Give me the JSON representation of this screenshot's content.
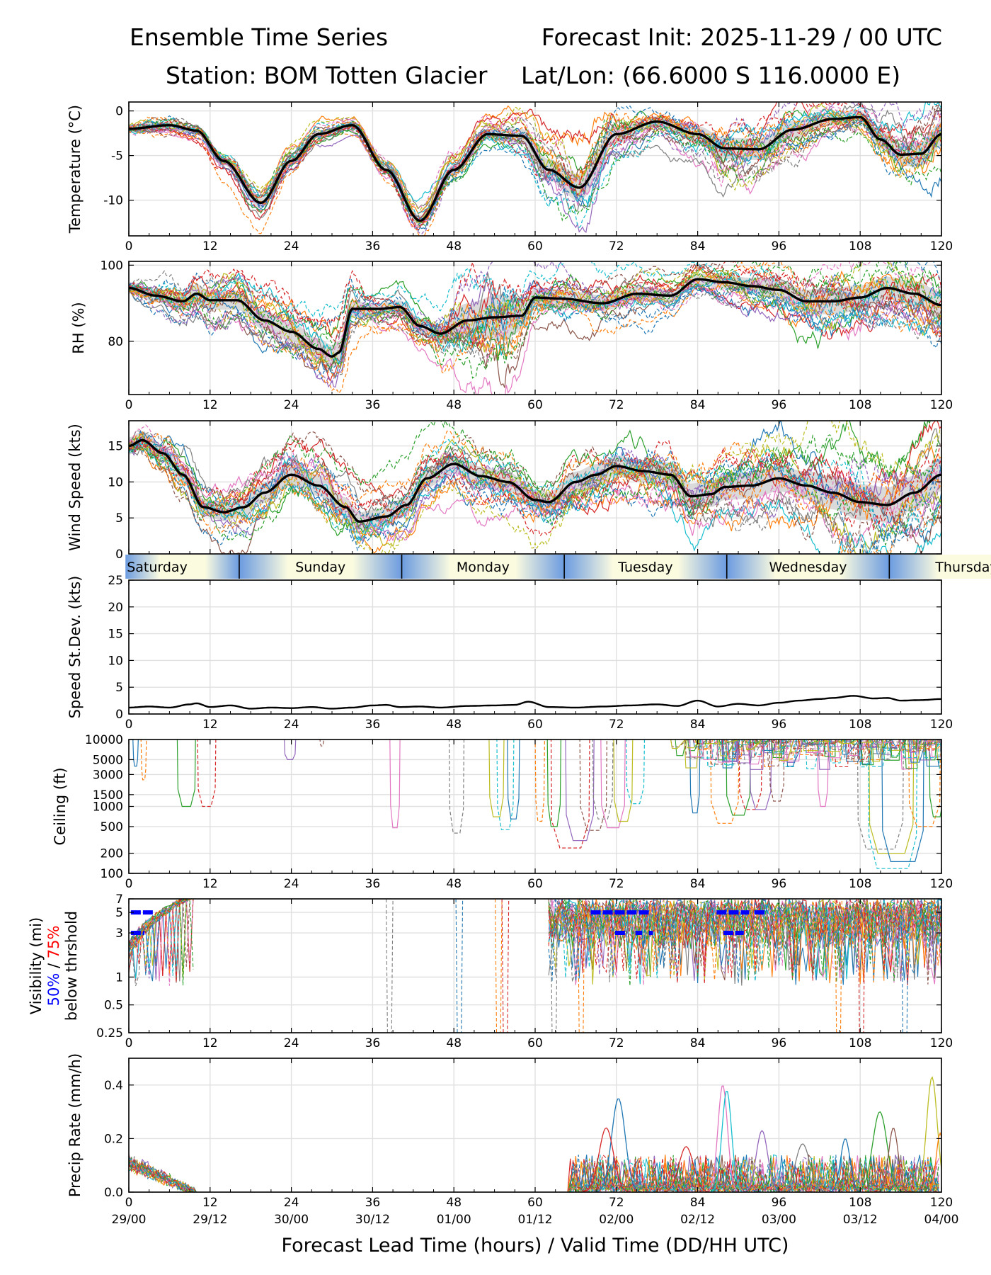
{
  "header": {
    "title_left": "Ensemble Time Series",
    "title_right": "Forecast Init: 2025-11-29 / 00 UTC",
    "station": "Station: BOM Totten Glacier",
    "latlon": "Lat/Lon: (66.6000 S 116.0000 E)"
  },
  "colors": {
    "members": [
      "#1f77b4",
      "#ff7f0e",
      "#2ca02c",
      "#d62728",
      "#9467bd",
      "#8c564b",
      "#e377c2",
      "#7f7f7f",
      "#bcbd22",
      "#17becf"
    ],
    "mean": "#000000",
    "spread": "#bbbbbb",
    "grid": "#e0e0e0",
    "vis_50": "#0000ff",
    "vis_75": "#ff0000",
    "day_light": "#fbfbe0",
    "day_dark": "#6b9be0"
  },
  "x_axis": {
    "ticks": [
      0,
      12,
      24,
      36,
      48,
      60,
      72,
      84,
      96,
      108,
      120
    ],
    "tick_labels": [
      "0",
      "12",
      "24",
      "36",
      "48",
      "60",
      "72",
      "84",
      "96",
      "108",
      "120"
    ],
    "valid_labels": [
      "29/00",
      "29/12",
      "30/00",
      "30/12",
      "01/00",
      "01/12",
      "02/00",
      "02/12",
      "03/00",
      "03/12",
      "04/00"
    ],
    "xlabel": "Forecast Lead Time (hours) / Valid Time (DD/HH UTC)",
    "xlim": [
      0,
      120
    ]
  },
  "day_band": {
    "days": [
      {
        "label": "Saturday",
        "start": -0.5,
        "end": 16.3
      },
      {
        "label": "Sunday",
        "start": 16.3,
        "end": 40.3
      },
      {
        "label": "Monday",
        "start": 40.3,
        "end": 64.3
      },
      {
        "label": "Tuesday",
        "start": 64.3,
        "end": 88.3
      },
      {
        "label": "Wednesday",
        "start": 88.3,
        "end": 112.3
      },
      {
        "label": "Thursday",
        "start": 112.3,
        "end": 136.3
      }
    ]
  },
  "chart_data": [
    {
      "id": "temperature",
      "type": "line",
      "ylabel": "Temperature (°C)",
      "ylim": [
        -14,
        1
      ],
      "yticks": [
        0,
        -5,
        -10
      ],
      "yticklabels": [
        "0",
        "-5",
        "-10"
      ],
      "mean": {
        "x": [
          0,
          6,
          10,
          14,
          19.5,
          24,
          28,
          33,
          38,
          43,
          48,
          53,
          58,
          62,
          66.5,
          72,
          78,
          84,
          88,
          93,
          98,
          104,
          108,
          111,
          114,
          117,
          120
        ],
        "y": [
          -2.0,
          -1.6,
          -2.2,
          -5.6,
          -10.3,
          -5.6,
          -2.6,
          -1.6,
          -6.6,
          -12.3,
          -6.6,
          -2.6,
          -2.8,
          -6.6,
          -8.6,
          -2.6,
          -1.2,
          -2.6,
          -4.2,
          -4.3,
          -2.1,
          -0.9,
          -0.7,
          -3.2,
          -4.9,
          -4.8,
          -2.6
        ]
      },
      "spread": {
        "x": [
          0,
          10,
          19.5,
          28,
          33,
          43,
          53,
          58,
          62,
          66.5,
          72,
          78,
          84,
          88,
          93,
          98,
          104,
          108,
          114,
          120
        ],
        "half": [
          0.5,
          0.4,
          0.6,
          0.4,
          0.3,
          0.6,
          0.6,
          0.8,
          1.2,
          1.5,
          1.0,
          0.6,
          0.9,
          1.2,
          1.2,
          1.0,
          0.7,
          0.7,
          1.3,
          1.4
        ]
      },
      "members": 24
    },
    {
      "id": "rh",
      "type": "line",
      "ylabel": "RH (%)",
      "ylim": [
        66,
        101
      ],
      "yticks": [
        100,
        80
      ],
      "yticklabels": [
        "100",
        "80"
      ],
      "mean": {
        "x": [
          0,
          4,
          8,
          10,
          12,
          16,
          20,
          24,
          28,
          30,
          31,
          33,
          37,
          40,
          43,
          46,
          50,
          54,
          58,
          60,
          64,
          70,
          75,
          80,
          84,
          88,
          92,
          96,
          100,
          104,
          108,
          112,
          116,
          120
        ],
        "y": [
          94.0,
          92.0,
          90.5,
          92.5,
          90.8,
          90.8,
          85.5,
          82.5,
          78.0,
          76.0,
          77.0,
          88.5,
          88.5,
          89.0,
          84.0,
          82.0,
          85.5,
          86.3,
          86.7,
          91.5,
          91.2,
          90.0,
          92.5,
          92.0,
          96.3,
          95.5,
          94.5,
          93.5,
          90.5,
          90.5,
          91.5,
          94.0,
          92.5,
          89.5
        ]
      },
      "spread": {
        "x": [
          0,
          12,
          24,
          31,
          36,
          44,
          50,
          55,
          60,
          72,
          84,
          96,
          104,
          112,
          120
        ],
        "half": [
          1.5,
          2.5,
          2.5,
          3.0,
          1.5,
          2.0,
          4.5,
          6.0,
          2.5,
          2.0,
          1.5,
          2.5,
          3.5,
          3.0,
          3.5
        ]
      },
      "members": 24
    },
    {
      "id": "wind",
      "type": "line",
      "ylabel": "Wind Speed (kts)",
      "ylim": [
        0,
        18.5
      ],
      "yticks": [
        0,
        5,
        10,
        15
      ],
      "yticklabels": [
        "0",
        "5",
        "10",
        "15"
      ],
      "mean": {
        "x": [
          0,
          2,
          5,
          8,
          11,
          14,
          17,
          20,
          24,
          28,
          32,
          34,
          38,
          41,
          44,
          48,
          52,
          56,
          60,
          62,
          66,
          69,
          72,
          76,
          80,
          83,
          86,
          88,
          92,
          96,
          100,
          104,
          108,
          112,
          116,
          120
        ],
        "y": [
          15.0,
          15.8,
          14.0,
          11.0,
          6.5,
          5.8,
          6.5,
          8.5,
          11.0,
          9.5,
          6.5,
          4.5,
          5.2,
          6.8,
          10.5,
          12.5,
          10.8,
          10.0,
          7.5,
          7.2,
          10.0,
          11.0,
          12.2,
          11.5,
          11.0,
          8.0,
          8.3,
          9.3,
          9.5,
          10.5,
          9.5,
          8.5,
          7.2,
          6.8,
          8.5,
          11.0
        ]
      },
      "spread": {
        "x": [
          0,
          12,
          24,
          36,
          48,
          60,
          72,
          84,
          96,
          108,
          120
        ],
        "half": [
          1.2,
          1.2,
          1.5,
          1.3,
          1.3,
          1.4,
          1.5,
          1.8,
          1.8,
          2.5,
          2.3
        ]
      },
      "members": 24
    },
    {
      "id": "stddev",
      "type": "line",
      "ylabel": "Speed St.Dev. (kts)",
      "ylim": [
        0,
        25
      ],
      "yticks": [
        0,
        5,
        10,
        15,
        20,
        25
      ],
      "yticklabels": [
        "0",
        "5",
        "10",
        "15",
        "20",
        "25"
      ],
      "mean": {
        "x": [
          0,
          3,
          6,
          9,
          10,
          12,
          15,
          18,
          21,
          24,
          27,
          30,
          33,
          36,
          38,
          40,
          43,
          46,
          50,
          54,
          57,
          59,
          62,
          66,
          70,
          74,
          78,
          81,
          84,
          87,
          90,
          93,
          96,
          99,
          102,
          104,
          107,
          110,
          112,
          114,
          117,
          120
        ],
        "y": [
          1.2,
          1.4,
          1.2,
          1.8,
          2.0,
          1.3,
          1.6,
          1.0,
          1.2,
          1.1,
          1.3,
          1.0,
          1.2,
          1.6,
          1.7,
          1.3,
          1.4,
          1.2,
          1.5,
          1.6,
          1.7,
          2.3,
          1.3,
          1.2,
          1.4,
          1.6,
          1.8,
          1.5,
          2.5,
          1.4,
          1.9,
          1.6,
          2.1,
          2.5,
          2.8,
          3.0,
          3.4,
          2.9,
          3.0,
          2.5,
          2.6,
          2.8
        ]
      }
    },
    {
      "id": "ceiling",
      "type": "line",
      "scale": "log",
      "ylabel": "Ceiling (ft)",
      "ylim": [
        100,
        10000
      ],
      "yticks": [
        10000,
        5000,
        3000,
        1500,
        1000,
        500,
        200,
        100
      ],
      "yticklabels": [
        "10000",
        "5000",
        "3000",
        "1500",
        "1000",
        "500",
        "200",
        "100"
      ],
      "dips": [
        {
          "x": 1,
          "w": 0.6,
          "v": 4000
        },
        {
          "x": 2.2,
          "w": 0.6,
          "v": 2500
        },
        {
          "x": 8.5,
          "w": 2.5,
          "v": 1000
        },
        {
          "x": 11.5,
          "w": 2.5,
          "v": 1000
        },
        {
          "x": 23.8,
          "w": 1.5,
          "v": 5000
        },
        {
          "x": 28.5,
          "w": 0.4,
          "v": 8000
        },
        {
          "x": 39.3,
          "w": 1.3,
          "v": 480
        },
        {
          "x": 48.4,
          "w": 2.0,
          "v": 400
        },
        {
          "x": 54.3,
          "w": 2.0,
          "v": 700
        },
        {
          "x": 55.6,
          "w": 2.3,
          "v": 450
        },
        {
          "x": 56.8,
          "w": 1.6,
          "v": 650
        },
        {
          "x": 60.7,
          "w": 1.2,
          "v": 600
        },
        {
          "x": 62.8,
          "w": 1.8,
          "v": 500
        },
        {
          "x": 65.2,
          "w": 5.5,
          "v": 240
        },
        {
          "x": 66.6,
          "w": 4.0,
          "v": 310
        },
        {
          "x": 68.6,
          "w": 3.8,
          "v": 440
        },
        {
          "x": 71.5,
          "w": 3.4,
          "v": 480
        },
        {
          "x": 70.0,
          "w": 2.8,
          "v": 650
        },
        {
          "x": 73.0,
          "w": 2.6,
          "v": 600
        },
        {
          "x": 74.8,
          "w": 2.5,
          "v": 1100
        },
        {
          "x": 83.6,
          "w": 1.3,
          "v": 800
        },
        {
          "x": 88.0,
          "w": 4.0,
          "v": 560
        },
        {
          "x": 90.0,
          "w": 3.4,
          "v": 740
        },
        {
          "x": 91.8,
          "w": 3.2,
          "v": 900
        },
        {
          "x": 93.3,
          "w": 3.0,
          "v": 900
        },
        {
          "x": 95.7,
          "w": 2.0,
          "v": 1200
        },
        {
          "x": 102.5,
          "w": 1.4,
          "v": 1000
        },
        {
          "x": 111.0,
          "w": 6.6,
          "v": 230
        },
        {
          "x": 112.6,
          "w": 6.4,
          "v": 200
        },
        {
          "x": 112.8,
          "w": 7.0,
          "v": 118
        },
        {
          "x": 114.3,
          "w": 6.0,
          "v": 150
        },
        {
          "x": 117.5,
          "w": 4.5,
          "v": 500
        },
        {
          "x": 119.3,
          "w": 2.0,
          "v": 700
        }
      ]
    },
    {
      "id": "visibility",
      "type": "line",
      "scale": "log",
      "ylabel": "Visibility (mi)",
      "ylabel_50": "50%",
      "ylabel_sep": " / ",
      "ylabel_75": "75%",
      "ylabel_extra": "below thrshold",
      "ylim": [
        0.25,
        7
      ],
      "yticks": [
        7,
        5,
        3,
        1,
        0.5,
        0.25
      ],
      "yticklabels": [
        "7",
        "5",
        "3",
        "1",
        "0.5",
        "0.25"
      ],
      "threshold_bars": [
        {
          "level": 5,
          "x0": 0.3,
          "x1": 3.8
        },
        {
          "level": 3,
          "x0": 0.3,
          "x1": 2.3
        },
        {
          "level": 5,
          "x0": 68.2,
          "x1": 77.0
        },
        {
          "level": 3,
          "x0": 71.8,
          "x1": 73.6
        },
        {
          "level": 3,
          "x0": 74.8,
          "x1": 75.8
        },
        {
          "level": 3,
          "x0": 76.8,
          "x1": 77.4
        },
        {
          "level": 5,
          "x0": 86.8,
          "x1": 91.6
        },
        {
          "level": 5,
          "x0": 92.4,
          "x1": 94.0
        },
        {
          "level": 3,
          "x0": 87.8,
          "x1": 90.8
        }
      ]
    },
    {
      "id": "precip",
      "type": "line",
      "ylabel": "Precip Rate (mm/h)",
      "ylim": [
        0,
        0.5
      ],
      "yticks": [
        0.0,
        0.2,
        0.4
      ],
      "yticklabels": [
        "0.0",
        "0.2",
        "0.4"
      ],
      "peaks": [
        {
          "x": 72.3,
          "v": 0.35,
          "w": 1.4
        },
        {
          "x": 70.5,
          "v": 0.24,
          "w": 1.5
        },
        {
          "x": 87.7,
          "v": 0.4,
          "w": 1.0
        },
        {
          "x": 88.3,
          "v": 0.38,
          "w": 1.0
        },
        {
          "x": 110.9,
          "v": 0.3,
          "w": 1.5
        },
        {
          "x": 112.9,
          "v": 0.24,
          "w": 1.0
        },
        {
          "x": 118.6,
          "v": 0.43,
          "w": 1.1
        },
        {
          "x": 119.8,
          "v": 0.22,
          "w": 0.8
        },
        {
          "x": 93.5,
          "v": 0.23,
          "w": 1.2
        },
        {
          "x": 99.5,
          "v": 0.18,
          "w": 1.5
        },
        {
          "x": 105.8,
          "v": 0.2,
          "w": 1.0
        },
        {
          "x": 82.3,
          "v": 0.17,
          "w": 1.5
        }
      ]
    }
  ]
}
